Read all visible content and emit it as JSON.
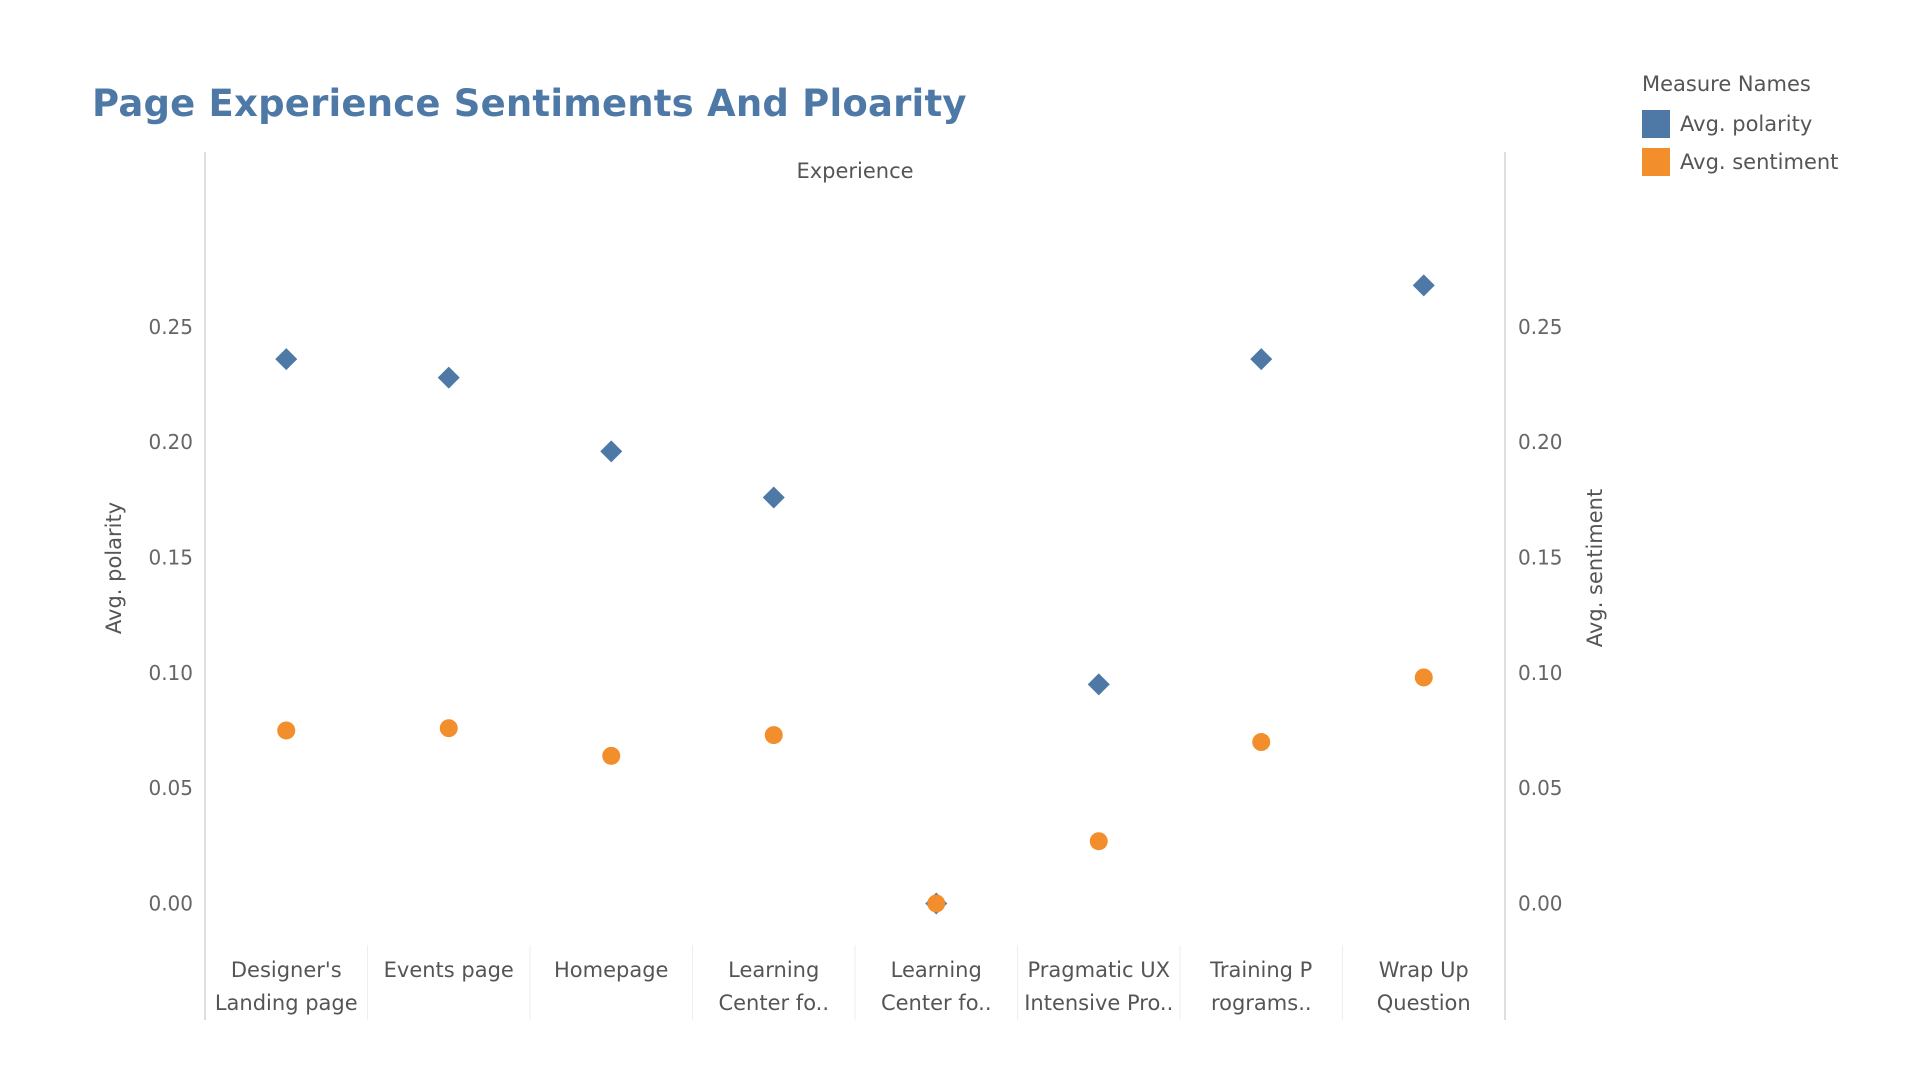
{
  "title": "Page Experience Sentiments And Ploarity",
  "legend": {
    "title": "Measure Names",
    "items": [
      {
        "label": "Avg. polarity",
        "color": "#4e79a7",
        "marker": "diamond"
      },
      {
        "label": "Avg. sentiment",
        "color": "#f28e2b",
        "marker": "circle"
      }
    ]
  },
  "chart_data": {
    "type": "scatter",
    "column_header": "Experience",
    "categories": [
      [
        "Designer's",
        "Landing page"
      ],
      [
        "Events page"
      ],
      [
        "Homepage"
      ],
      [
        "Learning",
        "Center fo.."
      ],
      [
        "Learning",
        "Center fo.."
      ],
      [
        "Pragmatic UX",
        "Intensive Pro.."
      ],
      [
        "Training P",
        "rograms.."
      ],
      [
        "Wrap Up",
        "Question"
      ]
    ],
    "left_axis": {
      "label": "Avg. polarity",
      "ticks": [
        "0.25",
        "0.20",
        "0.15",
        "0.10",
        "0.05",
        "0.00"
      ]
    },
    "right_axis": {
      "label": "Avg. sentiment",
      "ticks": [
        "0.25",
        "0.20",
        "0.15",
        "0.10",
        "0.05",
        "0.00"
      ]
    },
    "ylim": [
      -0.018,
      0.305
    ],
    "series": [
      {
        "name": "Avg. polarity",
        "marker": "diamond",
        "color": "#4e79a7",
        "values": [
          0.236,
          0.228,
          0.196,
          0.176,
          0.0,
          0.095,
          0.236,
          0.268
        ]
      },
      {
        "name": "Avg. sentiment",
        "marker": "circle",
        "color": "#f28e2b",
        "values": [
          0.075,
          0.076,
          0.064,
          0.073,
          0.0,
          0.027,
          0.07,
          0.098
        ]
      }
    ]
  }
}
